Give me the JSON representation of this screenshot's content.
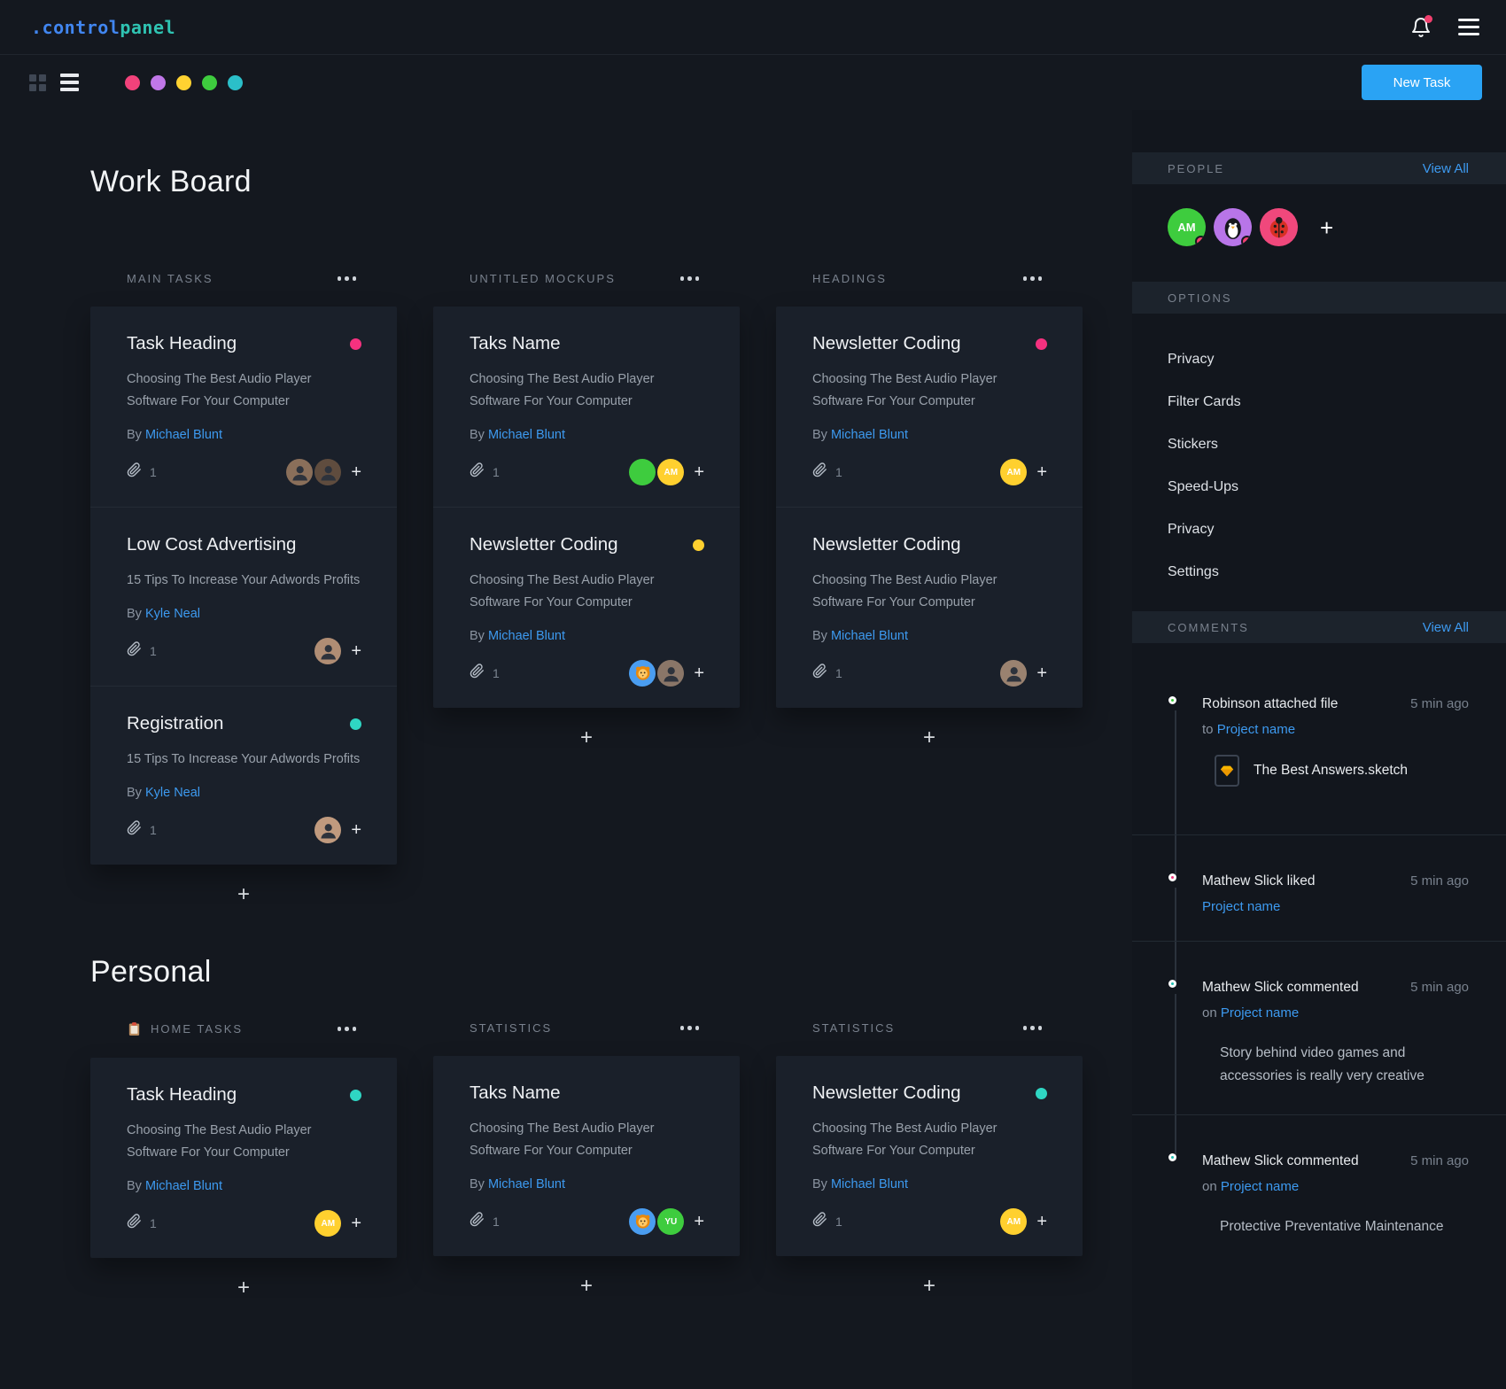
{
  "header": {
    "logo": {
      "prefix": ".",
      "first": "control",
      "second": "panel"
    },
    "icons": {
      "bell": "bell-icon",
      "menu": "hamburger-icon"
    }
  },
  "toolbar": {
    "new_task_label": "New Task",
    "filter_dots": [
      "#f2427b",
      "#c077e8",
      "#ffd231",
      "#3ecc3e",
      "#2bbfc9"
    ]
  },
  "colors": {
    "accent_blue": "#2aa3f4",
    "link_blue": "#3d9af0",
    "pink": "#f5317f",
    "teal": "#2fd6c3",
    "yellow": "#ffd02f",
    "green": "#3ecc3e"
  },
  "board": {
    "title": "Work Board",
    "columns": [
      {
        "title": "MAIN TASKS",
        "add_label": "+",
        "cards": [
          {
            "title": "Task Heading",
            "dot_color": "#f5317f",
            "body": "Choosing The Best Audio Player Software For Your Computer",
            "by_label": "By",
            "author": "Michael Blunt",
            "attachment_count": "1",
            "add_label": "+",
            "avatars": [
              {
                "kind": "person",
                "bg": "#8a6f5a"
              },
              {
                "kind": "person",
                "bg": "#5f4c3e"
              }
            ]
          },
          {
            "title": "Low Cost Advertising",
            "dot_color": null,
            "body": "15 Tips To Increase Your Adwords Profits",
            "by_label": "By",
            "author": "Kyle Neal",
            "attachment_count": "1",
            "add_label": "+",
            "avatars": [
              {
                "kind": "person",
                "bg": "#b08d74"
              }
            ]
          },
          {
            "title": "Registration",
            "dot_color": "#2fd6c3",
            "body": "15 Tips To Increase Your Adwords Profits",
            "by_label": "By",
            "author": "Kyle Neal",
            "attachment_count": "1",
            "add_label": "+",
            "avatars": [
              {
                "kind": "person",
                "bg": "#c09a7e"
              }
            ]
          }
        ]
      },
      {
        "title": "UNTITLED MOCKUPS",
        "add_label": "+",
        "cards": [
          {
            "title": "Taks Name",
            "dot_color": null,
            "body": "Choosing The Best Audio Player Software For Your Computer",
            "by_label": "By",
            "author": "Michael Blunt",
            "attachment_count": "1",
            "add_label": "+",
            "avatars": [
              {
                "kind": "plain",
                "bg": "#3ecc3e"
              },
              {
                "kind": "initials",
                "bg": "#ffd02f",
                "text": "AM"
              }
            ]
          },
          {
            "title": "Newsletter Coding",
            "dot_color": "#ffd02f",
            "body": "Choosing The Best Audio Player Software For Your Computer",
            "by_label": "By",
            "author": "Michael Blunt",
            "attachment_count": "1",
            "add_label": "+",
            "avatars": [
              {
                "kind": "lion",
                "bg": "#4a9df0"
              },
              {
                "kind": "person",
                "bg": "#8a7668"
              }
            ]
          }
        ]
      },
      {
        "title": "HEADINGS",
        "add_label": "+",
        "cards": [
          {
            "title": "Newsletter Coding",
            "dot_color": "#f5317f",
            "body": "Choosing The Best Audio Player Software For Your Computer",
            "by_label": "By",
            "author": "Michael Blunt",
            "attachment_count": "1",
            "add_label": "+",
            "avatars": [
              {
                "kind": "initials",
                "bg": "#ffd02f",
                "text": "AM"
              }
            ]
          },
          {
            "title": "Newsletter Coding",
            "dot_color": null,
            "body": "Choosing The Best Audio Player Software For Your Computer",
            "by_label": "By",
            "author": "Michael Blunt",
            "attachment_count": "1",
            "add_label": "+",
            "avatars": [
              {
                "kind": "person",
                "bg": "#9a8270"
              }
            ]
          }
        ]
      }
    ]
  },
  "personal": {
    "title": "Personal",
    "columns": [
      {
        "title": "HOME TASKS",
        "icon": "clipboard",
        "add_label": "+",
        "cards": [
          {
            "title": "Task Heading",
            "dot_color": "#2fd6c3",
            "body": "Choosing The Best Audio Player Software For Your Computer",
            "by_label": "By",
            "author": "Michael Blunt",
            "attachment_count": "1",
            "add_label": "+",
            "avatars": [
              {
                "kind": "initials",
                "bg": "#ffd02f",
                "text": "AM"
              }
            ]
          }
        ]
      },
      {
        "title": "STATISTICS",
        "add_label": "+",
        "cards": [
          {
            "title": "Taks Name",
            "dot_color": null,
            "body": "Choosing The Best Audio Player Software For Your Computer",
            "by_label": "By",
            "author": "Michael Blunt",
            "attachment_count": "1",
            "add_label": "+",
            "avatars": [
              {
                "kind": "lion",
                "bg": "#4a9df0"
              },
              {
                "kind": "initials",
                "bg": "#3ecc3e",
                "text": "YU"
              }
            ]
          }
        ]
      },
      {
        "title": "STATISTICS",
        "add_label": "+",
        "cards": [
          {
            "title": "Newsletter Coding",
            "dot_color": "#2fd6c3",
            "body": "Choosing The Best Audio Player Software For Your Computer",
            "by_label": "By",
            "author": "Michael Blunt",
            "attachment_count": "1",
            "add_label": "+",
            "avatars": [
              {
                "kind": "initials",
                "bg": "#ffd02f",
                "text": "AM"
              }
            ]
          }
        ]
      }
    ]
  },
  "sidebar": {
    "people": {
      "title": "PEOPLE",
      "view_all": "View All",
      "add_label": "+",
      "avatars": [
        {
          "kind": "initials",
          "bg": "#3ecc3e",
          "text": "AM",
          "status": true
        },
        {
          "kind": "penguin",
          "bg": "#b875e8",
          "status": true
        },
        {
          "kind": "ladybug",
          "bg": "#f0487c",
          "status": false
        }
      ]
    },
    "options": {
      "title": "OPTIONS",
      "items": [
        "Privacy",
        "Filter Cards",
        "Stickers",
        "Speed-Ups",
        "Privacy",
        "Settings"
      ]
    },
    "comments": {
      "title": "COMMENTS",
      "view_all": "View All",
      "items": [
        {
          "dot": "#3ecc3e",
          "title": "Robinson attached file",
          "time": "5 min ago",
          "prefix": "to",
          "link": "Project name",
          "file": "The Best Answers.sketch"
        },
        {
          "dot": "#f0387d",
          "title": "Mathew Slick liked",
          "time": "5 min ago",
          "prefix": "",
          "link": "Project name"
        },
        {
          "dot": "#1fbfb2",
          "title": "Mathew Slick commented",
          "time": "5 min ago",
          "prefix": "on",
          "link": "Project name",
          "body": "Story behind video games and accessories is really very creative"
        },
        {
          "dot": "#1fbfb2",
          "title": "Mathew Slick commented",
          "time": "5 min ago",
          "prefix": "on",
          "link": "Project name",
          "body": "Protective Preventative Maintenance"
        }
      ]
    }
  }
}
